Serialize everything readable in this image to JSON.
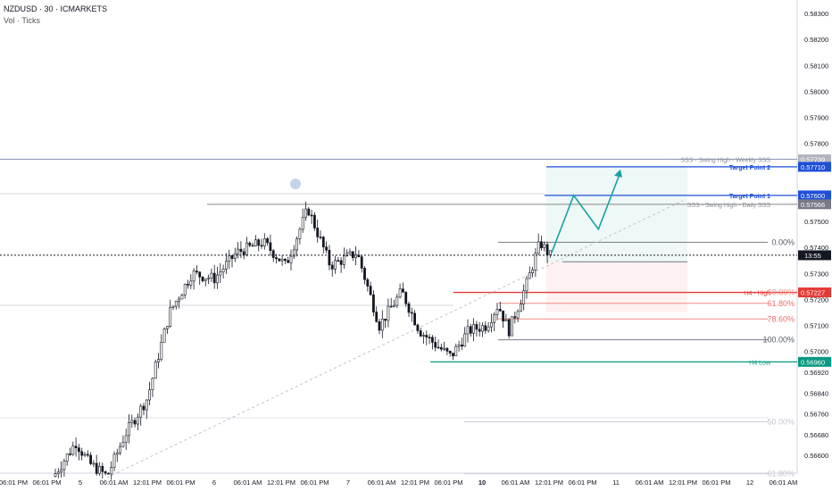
{
  "header": {
    "symbol_line": "NZDUSD · 30 · ICMARKETS",
    "indicator_line": "Vol · Ticks"
  },
  "chart_data": {
    "type": "candlestick",
    "symbol": "NZDUSD",
    "timeframe": "30",
    "exchange": "ICMARKETS",
    "ylim": [
      0.565,
      0.585
    ],
    "y_ticks": [
      "0.58300",
      "0.58200",
      "0.58100",
      "0.58000",
      "0.57900",
      "0.57800",
      "0.57500",
      "0.57400",
      "0.57300",
      "0.57200",
      "0.57100",
      "0.57000",
      "0.56920",
      "0.56840",
      "0.56760",
      "0.56680",
      "0.56600",
      "0.56525"
    ],
    "x_labels": [
      "06:01 PM",
      "06:01 PM",
      "5",
      "06:01 AM",
      "12:01 PM",
      "06:01 PM",
      "6",
      "06:01 AM",
      "12:01 PM",
      "06:01 PM",
      "7",
      "06:01 AM",
      "12:01 PM",
      "06:01 PM",
      "10",
      "06:01 AM",
      "12:01 PM",
      "06:01 PM",
      "11",
      "06:01 AM",
      "12:01 PM",
      "06:01 PM",
      "12",
      "06:01 AM"
    ],
    "current_price_label": "13:55",
    "current_price": 0.5737,
    "levels": [
      {
        "name": "SSS - Swing High - Weekly SSS",
        "price": 0.57739,
        "price_label": "0.57739",
        "color": "#8a8fb5"
      },
      {
        "name": "Target Point 2",
        "price": 0.5771,
        "price_label": "0.57710",
        "color": "#1e4fd8"
      },
      {
        "name": "Target Point 1",
        "price": 0.576,
        "price_label": "0.57600",
        "color": "#1e4fd8"
      },
      {
        "name": "SSS - Swing High - Daily SSS",
        "price": 0.57566,
        "price_label": "0.57566",
        "color": "#888888"
      },
      {
        "name": "H4 - High",
        "price": 0.57227,
        "price_label": "0.57227",
        "color": "#e53935"
      },
      {
        "name": "H4 Low",
        "price": 0.5696,
        "price_label": "0.56960",
        "color": "#089981"
      }
    ],
    "fib_levels": [
      {
        "label": "0.00%",
        "price": 0.5742
      },
      {
        "label": "61.80%",
        "price": 0.57185
      },
      {
        "label": "78.60%",
        "price": 0.57125
      },
      {
        "label": "100.00%",
        "price": 0.57045
      },
      {
        "label": "50.00%",
        "price": 0.5673
      },
      {
        "label": "61.80%",
        "price": 0.5653
      }
    ],
    "fib_overlap_label": "60.00%",
    "trade_box": {
      "entry": 0.57345,
      "target": 0.5771,
      "stop": 0.5715
    },
    "projection_path": [
      {
        "t": 0.0,
        "price": 0.5738
      },
      {
        "t": 0.32,
        "price": 0.576
      },
      {
        "t": 0.68,
        "price": 0.5747
      },
      {
        "t": 1.0,
        "price": 0.5769
      }
    ]
  }
}
